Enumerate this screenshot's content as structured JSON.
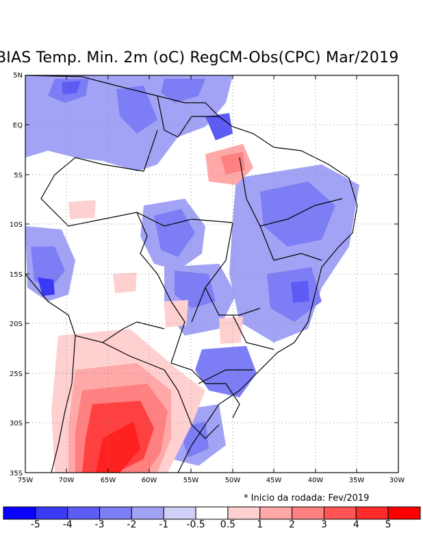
{
  "title": "BIAS Temp. Min. 2m (oC) RegCM-Obs(CPC) Mar/2019",
  "note": "* Inicio da rodada: Fev/2019",
  "map": {
    "lon_range": [
      -75,
      -30
    ],
    "lat_range": [
      -35,
      5
    ],
    "lat_ticks": [
      "5N",
      "EQ",
      "5S",
      "10S",
      "15S",
      "20S",
      "25S",
      "30S",
      "35S"
    ],
    "lon_ticks": [
      "75W",
      "70W",
      "65W",
      "60W",
      "55W",
      "50W",
      "45W",
      "40W",
      "35W",
      "30W"
    ],
    "grid": "dotted"
  },
  "colorbar": {
    "labels": [
      "-5",
      "-4",
      "-3",
      "-2",
      "-1",
      "-0.5",
      "0.5",
      "1",
      "2",
      "3",
      "4",
      "5"
    ],
    "colors": [
      "#0a00ff",
      "#3a3af5",
      "#5c5cf5",
      "#7d7df5",
      "#a3a3f5",
      "#cfcff7",
      "#ffffff",
      "#ffd0d0",
      "#ffa8a8",
      "#ff8080",
      "#ff5555",
      "#ff2a2a",
      "#ff0000"
    ]
  },
  "colors": {
    "cold_strong": "#3a3af5",
    "cold_light": "#a3a3f5",
    "warm_light": "#ffa8a8",
    "warm_strong": "#ff3030"
  }
}
